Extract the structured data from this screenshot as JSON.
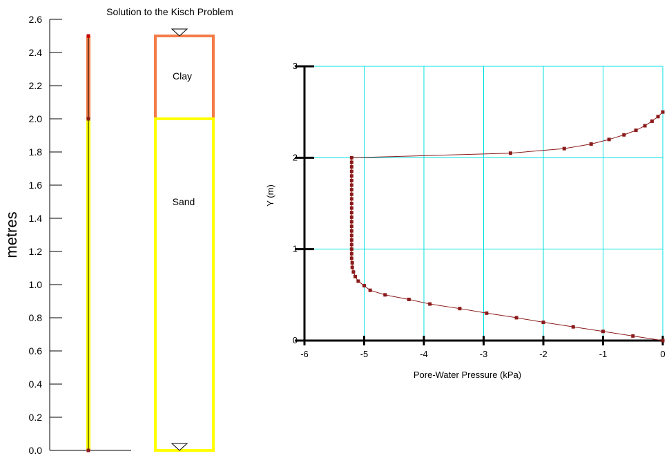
{
  "title": "Solution to the Kisch Problem",
  "left_panel": {
    "axis_label": "metres",
    "ylim": [
      0,
      2.6
    ],
    "ticks": [
      "0.0",
      "0.2",
      "0.4",
      "0.6",
      "0.8",
      "1.0",
      "1.2",
      "1.4",
      "1.6",
      "1.8",
      "2.0",
      "2.2",
      "2.4",
      "2.6"
    ],
    "layers": [
      {
        "name": "Clay",
        "top": 2.5,
        "bottom": 2.0,
        "color": "#f47c48"
      },
      {
        "name": "Sand",
        "top": 2.0,
        "bottom": 0.0,
        "color": "#ffff00"
      }
    ],
    "water_table_markers": [
      2.5,
      0.0
    ],
    "column_nodes": [
      2.5,
      2.0,
      0.0
    ]
  },
  "chart_data": {
    "type": "line",
    "title": "",
    "xlabel": "Pore-Water Pressure (kPa)",
    "ylabel": "Y (m)",
    "xlim": [
      -6,
      0
    ],
    "ylim": [
      0,
      3
    ],
    "xticks": [
      -6,
      -5,
      -4,
      -3,
      -2,
      -1,
      0
    ],
    "yticks": [
      0,
      1,
      2,
      3
    ],
    "grid": true,
    "line_color": "#8b1a1a",
    "series": [
      {
        "points": [
          [
            0,
            0
          ],
          [
            -0.5,
            0.05
          ],
          [
            -1.0,
            0.1
          ],
          [
            -1.5,
            0.15
          ],
          [
            -2.0,
            0.2
          ],
          [
            -2.45,
            0.25
          ],
          [
            -2.95,
            0.3
          ],
          [
            -3.4,
            0.35
          ],
          [
            -3.9,
            0.4
          ],
          [
            -4.25,
            0.45
          ],
          [
            -4.65,
            0.5
          ],
          [
            -4.9,
            0.55
          ],
          [
            -5.0,
            0.6
          ],
          [
            -5.1,
            0.65
          ],
          [
            -5.15,
            0.7
          ],
          [
            -5.18,
            0.75
          ],
          [
            -5.2,
            0.8
          ],
          [
            -5.2,
            0.85
          ],
          [
            -5.21,
            0.9
          ],
          [
            -5.21,
            0.95
          ],
          [
            -5.21,
            1.0
          ],
          [
            -5.21,
            1.05
          ],
          [
            -5.21,
            1.1
          ],
          [
            -5.21,
            1.15
          ],
          [
            -5.21,
            1.2
          ],
          [
            -5.21,
            1.25
          ],
          [
            -5.21,
            1.3
          ],
          [
            -5.21,
            1.35
          ],
          [
            -5.21,
            1.4
          ],
          [
            -5.21,
            1.45
          ],
          [
            -5.21,
            1.5
          ],
          [
            -5.21,
            1.55
          ],
          [
            -5.21,
            1.6
          ],
          [
            -5.21,
            1.65
          ],
          [
            -5.21,
            1.7
          ],
          [
            -5.21,
            1.75
          ],
          [
            -5.21,
            1.8
          ],
          [
            -5.21,
            1.85
          ],
          [
            -5.21,
            1.9
          ],
          [
            -5.21,
            1.95
          ],
          [
            -5.21,
            2.0
          ],
          [
            -2.55,
            2.05
          ],
          [
            -1.65,
            2.1
          ],
          [
            -1.2,
            2.15
          ],
          [
            -0.9,
            2.2
          ],
          [
            -0.65,
            2.25
          ],
          [
            -0.45,
            2.3
          ],
          [
            -0.3,
            2.35
          ],
          [
            -0.18,
            2.4
          ],
          [
            -0.08,
            2.45
          ],
          [
            0,
            2.5
          ]
        ]
      }
    ]
  }
}
